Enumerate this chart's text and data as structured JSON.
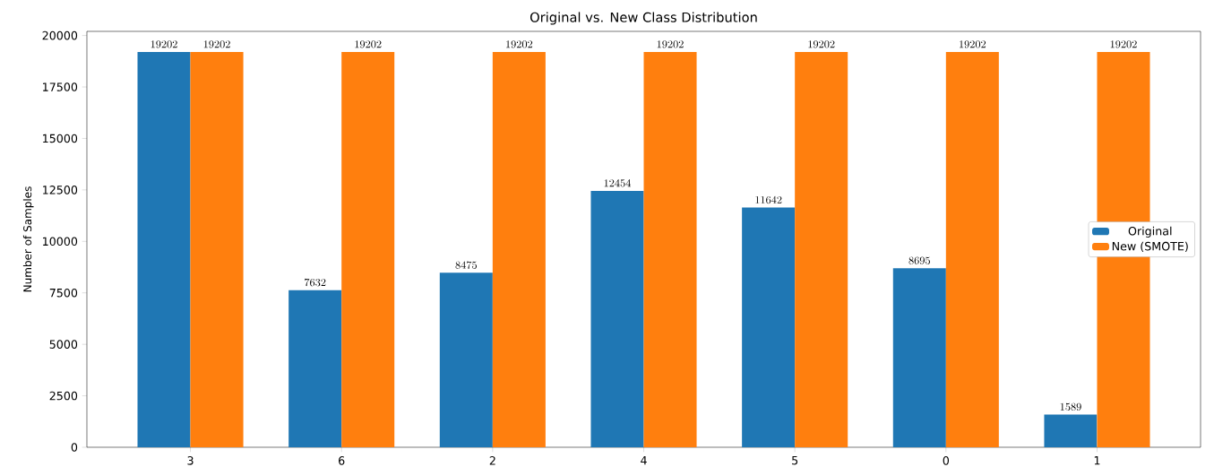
{
  "chart_data": {
    "type": "bar",
    "title": "Original vs. New Class Distribution",
    "ylabel": "Number of Samples",
    "categories": [
      "3",
      "6",
      "2",
      "4",
      "5",
      "0",
      "1"
    ],
    "series": [
      {
        "name": "Original",
        "color": "#1f77b4",
        "values": [
          19202,
          7632,
          8475,
          12454,
          11642,
          8695,
          1589
        ]
      },
      {
        "name": "New (SMOTE)",
        "color": "#ff7f0e",
        "values": [
          19202,
          19202,
          19202,
          19202,
          19202,
          19202,
          19202
        ]
      }
    ],
    "ylim": [
      0,
      20200
    ],
    "yticks": [
      0,
      2500,
      5000,
      7500,
      10000,
      12500,
      15000,
      17500,
      20000
    ],
    "data_labels": true,
    "legend": "right",
    "grid": false
  }
}
